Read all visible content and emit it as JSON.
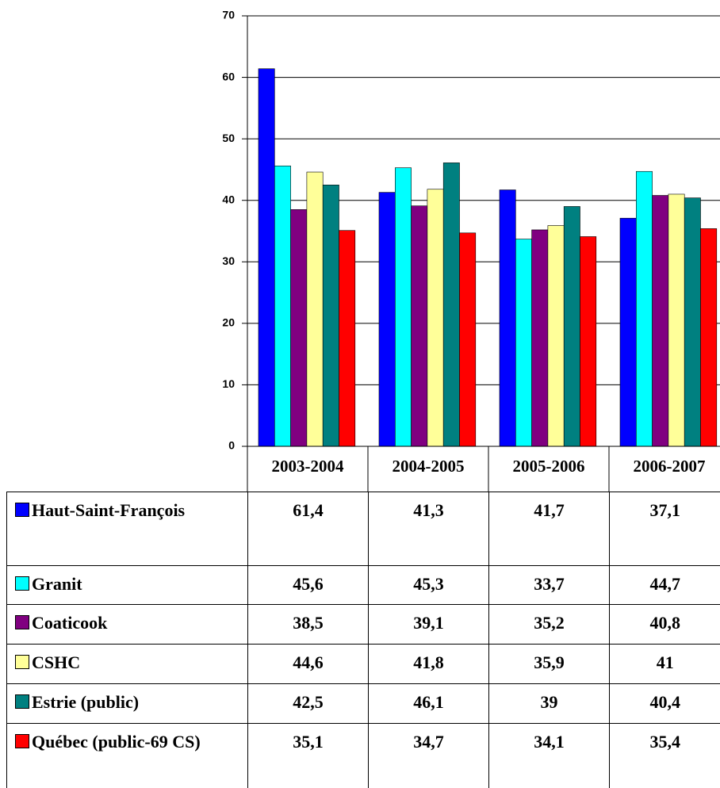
{
  "chart_data": {
    "type": "bar",
    "categories": [
      "2003-2004",
      "2004-2005",
      "2005-2006",
      "2006-2007"
    ],
    "series": [
      {
        "name": "Haut-Saint-François",
        "color": "#0000ff",
        "values": [
          61.4,
          41.3,
          41.7,
          37.1
        ],
        "value_labels": [
          "61,4",
          "41,3",
          "41,7",
          "37,1"
        ]
      },
      {
        "name": "Granit",
        "color": "#00ffff",
        "values": [
          45.6,
          45.3,
          33.7,
          44.7
        ],
        "value_labels": [
          "45,6",
          "45,3",
          "33,7",
          "44,7"
        ]
      },
      {
        "name": "Coaticook",
        "color": "#800080",
        "values": [
          38.5,
          39.1,
          35.2,
          40.8
        ],
        "value_labels": [
          "38,5",
          "39,1",
          "35,2",
          "40,8"
        ]
      },
      {
        "name": "CSHC",
        "color": "#ffff99",
        "values": [
          44.6,
          41.8,
          35.9,
          41
        ],
        "value_labels": [
          "44,6",
          "41,8",
          "35,9",
          "41"
        ]
      },
      {
        "name": "Estrie (public)",
        "color": "#008080",
        "values": [
          42.5,
          46.1,
          39,
          40.4
        ],
        "value_labels": [
          "42,5",
          "46,1",
          "39",
          "40,4"
        ]
      },
      {
        "name": "Québec (public-69 CS)",
        "color": "#ff0000",
        "values": [
          35.1,
          34.7,
          34.1,
          35.4
        ],
        "value_labels": [
          "35,1",
          "34,7",
          "34,1",
          "35,4"
        ]
      }
    ],
    "ylim": [
      0,
      70
    ],
    "yticks": [
      0,
      10,
      20,
      30,
      40,
      50,
      60,
      70
    ],
    "grid": true
  }
}
